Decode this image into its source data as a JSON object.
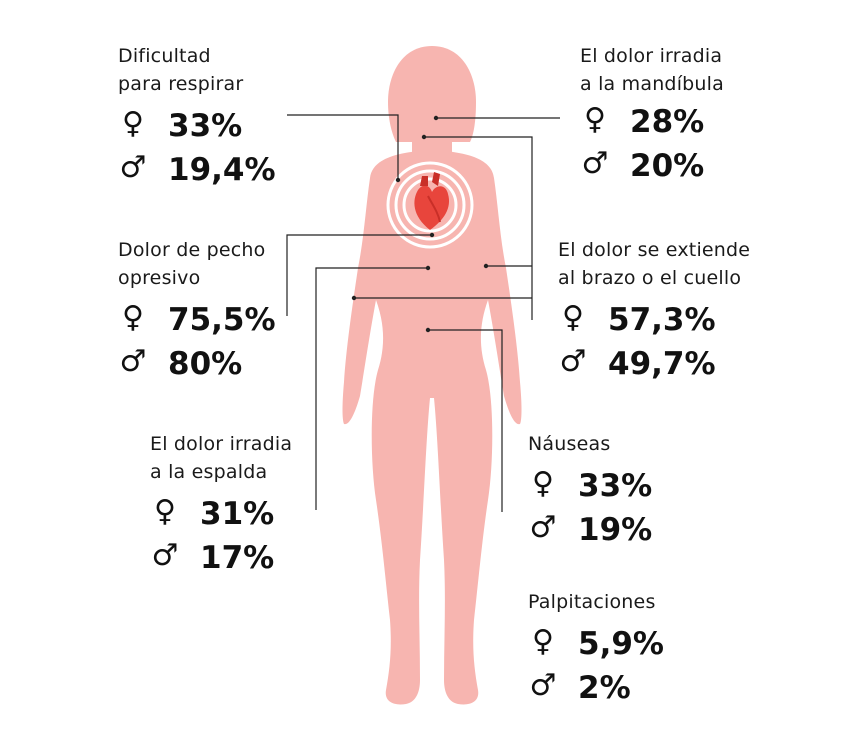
{
  "colors": {
    "body": "#f7b5b0",
    "heart": "#e8453c",
    "heart_dark": "#c92f28",
    "line": "#222222"
  },
  "icons": {
    "female": "female-symbol-icon",
    "male": "male-symbol-icon"
  },
  "symbols": {
    "female": "♀",
    "male": "♂"
  },
  "symptoms": {
    "breath": {
      "label": [
        "Dificultad",
        "para respirar"
      ],
      "female": "33%",
      "male": "19,4%"
    },
    "jaw": {
      "label": [
        "El dolor irradia",
        "a la mandíbula"
      ],
      "female": "28%",
      "male": "20%"
    },
    "chest": {
      "label": [
        "Dolor de pecho",
        "opresivo"
      ],
      "female": "75,5%",
      "male": "80%"
    },
    "arm": {
      "label": [
        "El dolor se extiende",
        "al brazo o el cuello"
      ],
      "female": "57,3%",
      "male": "49,7%"
    },
    "back": {
      "label": [
        "El dolor irradia",
        "a la espalda"
      ],
      "female": "31%",
      "male": "17%"
    },
    "nausea": {
      "label": [
        "Náuseas"
      ],
      "female": "33%",
      "male": "19%"
    },
    "palpit": {
      "label": [
        "Palpitaciones"
      ],
      "female": "5,9%",
      "male": "2%"
    }
  }
}
